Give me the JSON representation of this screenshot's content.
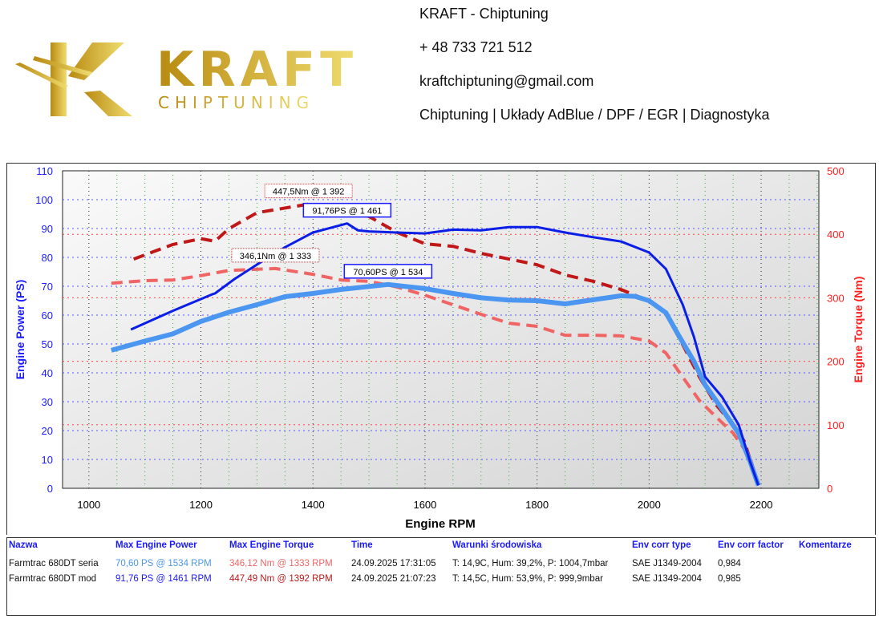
{
  "header": {
    "brand_logo_text": "KRAFT",
    "brand_logo_sub": "CHIPTUNING",
    "company": "KRAFT - Chiptuning",
    "phone": "+ 48 733 721 512",
    "email": "kraftchiptuning@gmail.com",
    "services": "Chiptuning | Układy AdBlue / DPF / EGR | Diagnostyka"
  },
  "colors": {
    "gold": "#c9a227",
    "mod_power": "#0a1ee6",
    "stock_power": "#4a96f0",
    "mod_torque": "#c01818",
    "stock_torque": "#f06464"
  },
  "chart_data": {
    "type": "line",
    "xlabel": "Engine RPM",
    "ylabel": "Engine Power (PS)",
    "y2label": "Engine Torque (Nm)",
    "xlim": [
      953,
      2303
    ],
    "ylim": [
      0,
      110
    ],
    "y2lim": [
      0,
      500
    ],
    "xticks": [
      1000,
      1200,
      1400,
      1600,
      1800,
      2000,
      2200
    ],
    "yticks": [
      0,
      10,
      20,
      30,
      40,
      50,
      60,
      70,
      80,
      90,
      100,
      110
    ],
    "y2ticks": [
      0,
      100,
      200,
      300,
      400,
      500
    ],
    "grid": true,
    "series": [
      {
        "name": "Farmtrac 680DT mod power",
        "axis": "left",
        "style": "solid",
        "color": "#0a1ee6",
        "x": [
          1075,
          1150,
          1220,
          1225,
          1260,
          1300,
          1350,
          1400,
          1461,
          1480,
          1500,
          1550,
          1600,
          1650,
          1700,
          1750,
          1800,
          1850,
          1900,
          1950,
          2000,
          2030,
          2060,
          2080,
          2100,
          2130,
          2160,
          2180,
          2195
        ],
        "y": [
          55,
          61.5,
          67.2,
          67.5,
          72.5,
          77.5,
          83.5,
          88.6,
          91.76,
          89.4,
          89,
          88.6,
          88.3,
          89.6,
          89.4,
          90.5,
          90.5,
          88.6,
          87,
          85.5,
          81.7,
          76,
          63.6,
          52.5,
          38.6,
          31.7,
          22,
          9.4,
          1
        ]
      },
      {
        "name": "Farmtrac 680DT seria power",
        "axis": "left",
        "style": "solid-thick",
        "color": "#4a96f0",
        "x": [
          1040,
          1100,
          1150,
          1200,
          1250,
          1300,
          1350,
          1400,
          1450,
          1534,
          1600,
          1650,
          1700,
          1750,
          1800,
          1850,
          1900,
          1950,
          1975,
          2000,
          2030,
          2050,
          2080,
          2100,
          2130,
          2160,
          2180,
          2195
        ],
        "y": [
          47.8,
          51,
          53.5,
          57.8,
          61,
          63.6,
          66.4,
          67.5,
          68.9,
          70.6,
          69.2,
          67.5,
          66,
          65.2,
          65,
          63.9,
          65.3,
          66.7,
          66.5,
          65,
          60.8,
          53.9,
          44,
          35.8,
          27.5,
          19,
          9.4,
          1
        ]
      },
      {
        "name": "Farmtrac 680DT mod torque",
        "axis": "right",
        "style": "dashed",
        "color": "#c01818",
        "x": [
          1080,
          1150,
          1200,
          1225,
          1250,
          1300,
          1392,
          1450,
          1500,
          1550,
          1600,
          1650,
          1700,
          1750,
          1800,
          1850,
          1900,
          1950,
          2000,
          2030,
          2060,
          2090,
          2120,
          2150,
          2170,
          2195
        ],
        "y": [
          361,
          384,
          393,
          389,
          409,
          434,
          447.5,
          443,
          428,
          403,
          385,
          381,
          370,
          361,
          352,
          336,
          326,
          313,
          295,
          276,
          226,
          175,
          131,
          100,
          74,
          5
        ]
      },
      {
        "name": "Farmtrac 680DT seria torque",
        "axis": "right",
        "style": "dashed",
        "color": "#f06464",
        "x": [
          1040,
          1100,
          1150,
          1200,
          1250,
          1333,
          1400,
          1450,
          1500,
          1550,
          1600,
          1650,
          1700,
          1750,
          1800,
          1850,
          1900,
          1950,
          2000,
          2030,
          2060,
          2090,
          2120,
          2150,
          2180,
          2195
        ],
        "y": [
          323,
          327,
          328,
          335,
          343,
          346.1,
          337,
          328,
          326,
          317,
          304,
          289,
          274,
          260,
          255,
          241,
          241,
          240,
          232,
          213,
          175,
          138,
          112,
          87,
          49,
          5
        ]
      }
    ],
    "annotations": [
      {
        "text": "447,5Nm @ 1 392",
        "series": 2,
        "x": 1392,
        "y": 447.5
      },
      {
        "text": "91,76PS @ 1 461",
        "series": 0,
        "x": 1461,
        "y": 91.76
      },
      {
        "text": "346,1Nm @ 1 333",
        "series": 3,
        "x": 1333,
        "y": 346.1
      },
      {
        "text": "70,60PS @ 1 534",
        "series": 1,
        "x": 1534,
        "y": 70.6
      }
    ]
  },
  "table": {
    "headers": [
      "Nazwa",
      "Max Engine Power",
      "Max Engine Torque",
      "Time",
      "Warunki środowiska",
      "Env corr type",
      "Env corr factor",
      "Komentarze"
    ],
    "rows": [
      [
        "Farmtrac 680DT seria",
        "70,60 PS @ 1534 RPM",
        "346,12 Nm @ 1333 RPM",
        "24.09.2025 17:31:05",
        "T: 14,9C, Hum: 39,2%, P: 1004,7mbar",
        "SAE J1349-2004",
        "0,984",
        ""
      ],
      [
        "Farmtrac 680DT mod",
        "91,76 PS @ 1461 RPM",
        "447,49 Nm @ 1392 RPM",
        "24.09.2025 21:07:23",
        "T: 14,5C, Hum: 53,9%, P: 999,9mbar",
        "SAE J1349-2004",
        "0,985",
        ""
      ]
    ]
  }
}
